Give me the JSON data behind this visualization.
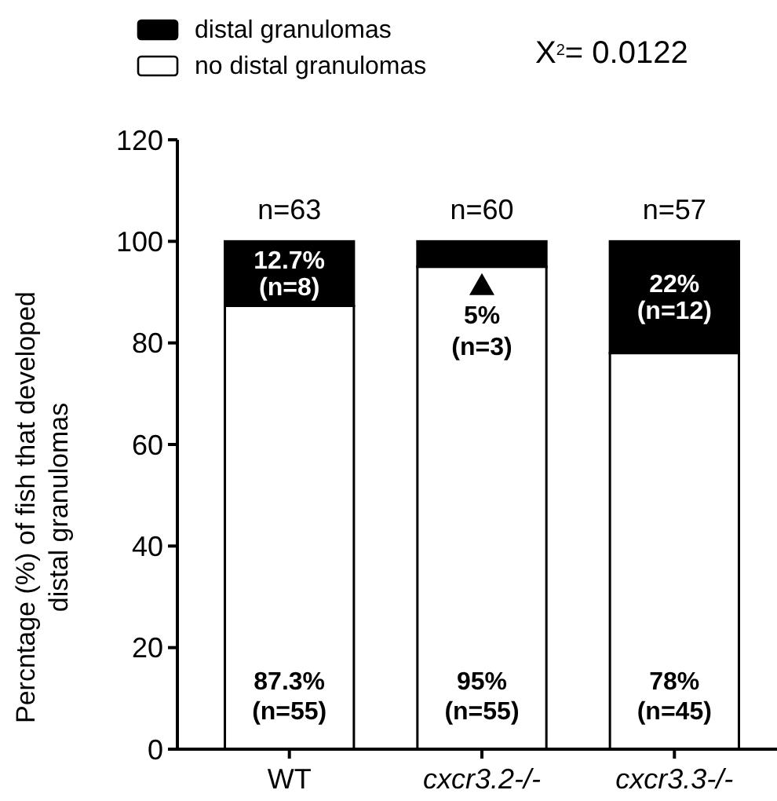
{
  "chart_data": {
    "type": "bar",
    "stacked": true,
    "ylabel": "Percntage (%) of fish that developed\ndistal granulomas",
    "categories": [
      "WT",
      "cxcr3.2-/-",
      "cxcr3.3-/-"
    ],
    "series": [
      {
        "name": "no distal granulomas",
        "color": "#ffffff",
        "values": [
          87.3,
          95,
          78
        ],
        "value_labels": [
          "87.3%\n(n=55)",
          "95%\n(n=55)",
          "78%\n(n=45)"
        ]
      },
      {
        "name": "distal granulomas",
        "color": "#000000",
        "values": [
          12.7,
          5,
          22
        ],
        "value_labels": [
          "12.7%\n(n=8)",
          "5%\n(n=3)",
          "22%\n(n=12)"
        ]
      }
    ],
    "ylim": [
      0,
      120
    ],
    "yticks": [
      0,
      20,
      40,
      60,
      80,
      100,
      120
    ],
    "legend": "top",
    "annotations": [
      "X$^{2}$= 0.0122",
      "n=63",
      "n=60",
      "n=57"
    ]
  }
}
